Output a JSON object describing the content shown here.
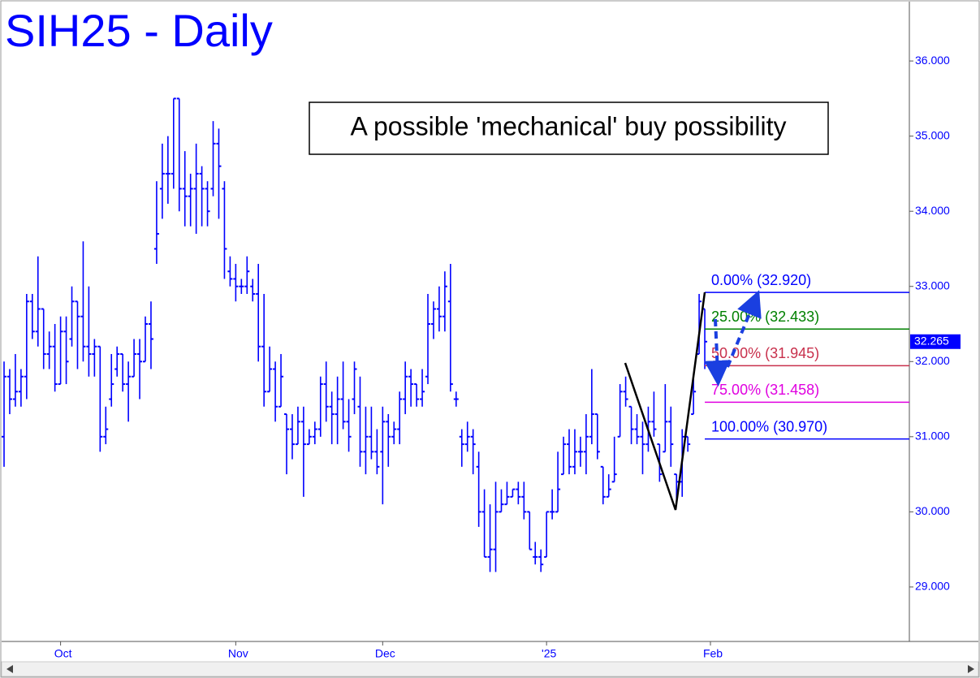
{
  "chart_data": {
    "type": "ohlc",
    "title": "SIH25 - Daily",
    "annotation": "A possible 'mechanical' buy possibility",
    "color": "#0000ff",
    "ylim": [
      28.275,
      36.79
    ],
    "yticks": [
      {
        "value": 29,
        "label": "29.000"
      },
      {
        "value": 30,
        "label": "30.000"
      },
      {
        "value": 31,
        "label": "31.000"
      },
      {
        "value": 32,
        "label": "32.000"
      },
      {
        "value": 33,
        "label": "33.000"
      },
      {
        "value": 34,
        "label": "34.000"
      },
      {
        "value": 35,
        "label": "35.000"
      },
      {
        "value": 36,
        "label": "36.000"
      }
    ],
    "last": {
      "value": 32.265,
      "label": "32.265"
    },
    "categories": [
      null,
      null,
      null,
      null,
      null,
      null,
      null,
      null,
      null,
      null,
      "Oct",
      null,
      null,
      null,
      null,
      null,
      null,
      null,
      null,
      null,
      null,
      null,
      null,
      null,
      null,
      null,
      null,
      null,
      null,
      null,
      null,
      null,
      null,
      null,
      null,
      null,
      null,
      null,
      null,
      null,
      null,
      "Nov",
      null,
      null,
      null,
      null,
      null,
      null,
      null,
      null,
      null,
      null,
      null,
      null,
      null,
      null,
      null,
      null,
      null,
      null,
      null,
      null,
      null,
      null,
      null,
      null,
      null,
      "Dec",
      null,
      null,
      null,
      null,
      null,
      null,
      null,
      null,
      null,
      null,
      null,
      null,
      null,
      null,
      null,
      null,
      null,
      null,
      null,
      null,
      null,
      null,
      null,
      null,
      null,
      null,
      null,
      null,
      "'25",
      null,
      null,
      null,
      null,
      null,
      null,
      null,
      null,
      null,
      null,
      null,
      null,
      null,
      null,
      null,
      null,
      null,
      null,
      null,
      null,
      null,
      null,
      null,
      null,
      null,
      null,
      null,
      null,
      "Feb"
    ],
    "open": [
      31.0,
      31.8,
      31.5,
      31.6,
      31.8,
      32.8,
      32.4,
      32.7,
      32.1,
      32.2,
      31.7,
      32.4,
      32.3,
      32.8,
      32.6,
      32.2,
      32.1,
      32.2,
      31.0,
      31.5,
      31.9,
      32.1,
      31.7,
      31.8,
      32.1,
      32.0,
      32.5,
      33.5,
      34.3,
      34.5,
      34.5,
      35.5,
      34.3,
      34.2,
      34.3,
      34.5,
      34.3,
      34.3,
      34.9,
      34.3,
      33.2,
      33.1,
      33.0,
      33.0,
      33.0,
      32.9,
      32.2,
      31.6,
      31.9,
      31.4,
      31.3,
      31.1,
      30.9,
      31.2,
      30.9,
      31.0,
      31.1,
      31.7,
      31.4,
      31.3,
      31.5,
      31.2,
      31.5,
      31.4,
      30.8,
      31.0,
      30.8,
      30.8,
      31.2,
      31.0,
      31.1,
      31.5,
      31.8,
      31.7,
      31.5,
      31.8,
      32.5,
      32.7,
      32.6,
      32.8,
      31.5,
      31.0,
      30.9,
      31.0,
      30.6,
      30.0,
      29.4,
      29.5,
      30.0,
      30.1,
      30.2,
      30.3,
      30.2,
      30.0,
      29.4,
      29.4,
      29.4,
      30.0,
      30.0,
      30.5,
      30.9,
      30.6,
      30.8,
      30.8,
      31.0,
      31.3,
      30.6,
      30.2,
      30.4,
      31.0,
      31.6,
      31.4,
      31.1,
      31.0,
      30.9,
      31.2,
      30.9,
      30.8,
      31.2,
      30.5,
      30.4,
      31.0,
      31.3,
      32.1,
      32.7,
      null
    ],
    "high": [
      32.0,
      31.9,
      32.1,
      31.9,
      32.9,
      32.9,
      33.4,
      32.7,
      32.4,
      32.5,
      32.6,
      32.6,
      33.0,
      32.8,
      33.6,
      33.0,
      32.3,
      32.2,
      31.4,
      32.1,
      32.2,
      32.1,
      32.0,
      32.3,
      32.3,
      32.6,
      32.8,
      34.4,
      34.9,
      35.0,
      35.5,
      35.5,
      34.8,
      34.5,
      34.9,
      34.6,
      34.4,
      35.2,
      35.1,
      34.4,
      33.4,
      33.3,
      33.1,
      33.4,
      33.1,
      33.3,
      32.9,
      32.2,
      32.0,
      32.1,
      31.3,
      31.3,
      31.4,
      31.4,
      31.1,
      31.2,
      31.8,
      32.0,
      31.6,
      31.8,
      32.0,
      31.5,
      32.0,
      31.8,
      31.4,
      31.4,
      31.1,
      31.4,
      31.3,
      31.2,
      31.6,
      32.0,
      31.9,
      31.7,
      31.9,
      32.9,
      32.8,
      33.0,
      33.2,
      33.3,
      31.6,
      31.1,
      31.2,
      31.1,
      30.8,
      30.3,
      30.1,
      30.4,
      30.3,
      30.4,
      30.3,
      30.4,
      30.4,
      30.0,
      29.6,
      29.5,
      30.0,
      30.3,
      30.8,
      31.0,
      31.1,
      31.1,
      31.0,
      31.3,
      31.9,
      31.3,
      30.6,
      30.5,
      31.0,
      31.7,
      31.8,
      31.4,
      31.3,
      31.2,
      31.4,
      31.6,
      30.9,
      31.7,
      31.4,
      30.5,
      31.1,
      31.0,
      31.8,
      32.9,
      32.7,
      null
    ],
    "low": [
      30.6,
      31.3,
      31.4,
      31.4,
      31.5,
      32.3,
      32.2,
      31.9,
      31.9,
      31.6,
      31.7,
      31.7,
      32.2,
      31.9,
      32.0,
      31.8,
      31.8,
      30.8,
      30.9,
      31.4,
      31.8,
      31.6,
      31.2,
      31.8,
      31.5,
      32.0,
      31.9,
      33.3,
      33.9,
      34.1,
      34.3,
      34.0,
      33.8,
      33.8,
      33.7,
      33.8,
      33.8,
      34.2,
      33.9,
      33.1,
      33.0,
      32.8,
      32.9,
      32.9,
      32.8,
      32.0,
      31.4,
      31.6,
      31.2,
      31.4,
      30.5,
      30.7,
      30.9,
      30.2,
      30.9,
      30.9,
      31.0,
      31.2,
      30.9,
      30.9,
      31.1,
      30.8,
      31.3,
      30.6,
      30.5,
      30.7,
      30.5,
      30.1,
      30.6,
      30.9,
      30.9,
      31.3,
      31.4,
      31.4,
      31.4,
      31.7,
      32.3,
      32.4,
      32.4,
      31.6,
      31.4,
      30.6,
      30.8,
      30.5,
      29.8,
      29.4,
      29.2,
      29.2,
      30.0,
      30.1,
      30.2,
      30.1,
      29.9,
      29.5,
      29.3,
      29.2,
      29.4,
      29.9,
      30.0,
      30.5,
      30.5,
      30.5,
      30.6,
      30.5,
      30.9,
      30.7,
      30.1,
      30.2,
      30.4,
      31.0,
      31.4,
      30.9,
      30.9,
      30.5,
      30.8,
      31.0,
      30.4,
      30.8,
      30.6,
      30.1,
      30.2,
      30.8,
      31.3,
      32.1,
      31.9,
      null
    ],
    "close": [
      31.8,
      31.5,
      31.6,
      31.8,
      32.8,
      32.4,
      32.7,
      32.1,
      32.2,
      31.7,
      32.4,
      32.0,
      32.8,
      32.6,
      32.2,
      32.1,
      32.2,
      31.0,
      31.1,
      31.7,
      32.1,
      31.7,
      31.8,
      32.1,
      32.0,
      32.5,
      32.3,
      33.7,
      34.5,
      34.5,
      35.5,
      34.3,
      34.2,
      34.3,
      34.5,
      34.3,
      34.0,
      34.9,
      34.6,
      33.5,
      33.1,
      33.0,
      33.0,
      33.2,
      32.9,
      32.2,
      31.6,
      31.9,
      31.4,
      31.8,
      31.1,
      30.9,
      31.2,
      30.9,
      31.0,
      31.1,
      31.7,
      31.4,
      31.3,
      31.5,
      31.2,
      31.0,
      31.9,
      30.8,
      31.0,
      30.8,
      30.6,
      31.2,
      31.0,
      31.1,
      31.5,
      31.8,
      31.7,
      31.5,
      31.6,
      32.5,
      32.7,
      32.6,
      33.0,
      31.7,
      31.5,
      30.9,
      31.0,
      30.9,
      30.0,
      29.4,
      29.5,
      30.0,
      30.1,
      30.2,
      30.3,
      30.2,
      30.0,
      29.5,
      29.4,
      29.3,
      30.0,
      30.0,
      30.3,
      30.9,
      30.6,
      30.8,
      30.8,
      31.0,
      31.3,
      30.8,
      30.2,
      30.3,
      30.5,
      31.6,
      31.5,
      31.1,
      31.0,
      30.9,
      31.2,
      31.1,
      30.5,
      31.2,
      30.9,
      30.4,
      31.0,
      30.9,
      31.6,
      32.8,
      32.265,
      null
    ],
    "levels": [
      {
        "text": "0.00% (32.920)",
        "value": 32.92,
        "color": "#0000ff"
      },
      {
        "text": "25.00% (32.433)",
        "value": 32.433,
        "color": "#008000"
      },
      {
        "text": "50.00% (31.945)",
        "value": 31.945,
        "color": "#c8304c"
      },
      {
        "text": "75.00% (31.458)",
        "value": 31.458,
        "color": "#e000e0"
      },
      {
        "text": "100.00% (30.970)",
        "value": 30.97,
        "color": "#0000ff"
      }
    ]
  }
}
